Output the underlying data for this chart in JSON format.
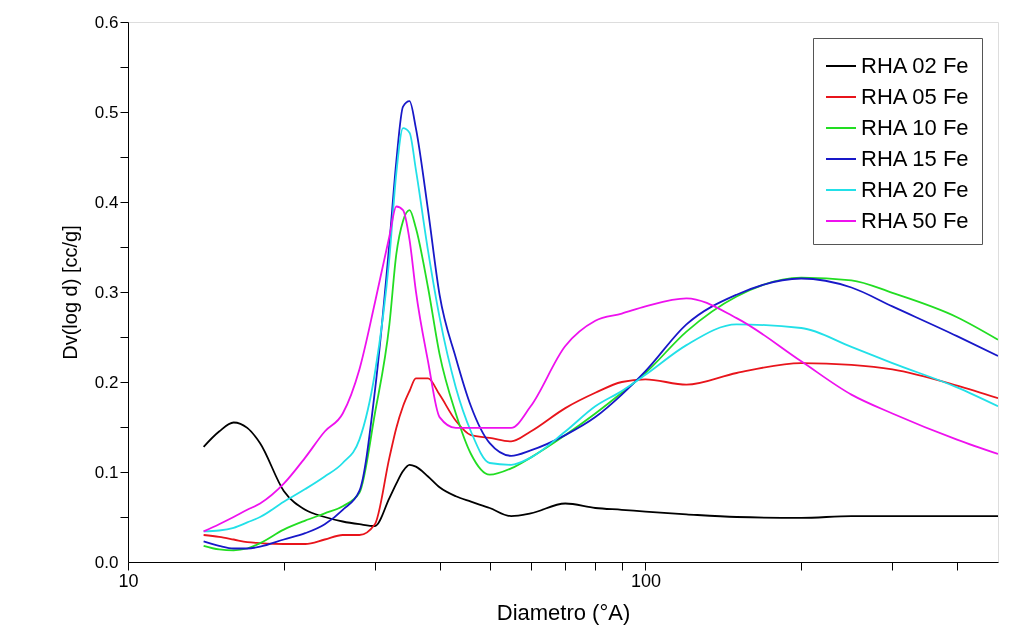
{
  "chart_data": {
    "type": "line",
    "xlabel": "Diametro (°A)",
    "ylabel": "Dv(log d) [cc/g]",
    "log": "x",
    "xlim": [
      10,
      480
    ],
    "ylim": [
      0,
      0.6
    ],
    "xticks": [
      10,
      {
        "value": 20,
        "label": null
      },
      {
        "value": 30,
        "label": null
      },
      {
        "value": 40,
        "label": null
      },
      {
        "value": 50,
        "label": null
      },
      {
        "value": 60,
        "label": null
      },
      {
        "value": 70,
        "label": null
      },
      {
        "value": 80,
        "label": null
      },
      {
        "value": 90,
        "label": null
      },
      100,
      {
        "value": 200,
        "label": null
      },
      {
        "value": 300,
        "label": null
      },
      {
        "value": 400,
        "label": null
      }
    ],
    "yticks": [
      {
        "value": 0,
        "label": "0.0"
      },
      {
        "value": 0.05,
        "label": null
      },
      0.1,
      {
        "value": 0.15,
        "label": null
      },
      0.2,
      {
        "value": 0.25,
        "label": null
      },
      0.3,
      {
        "value": 0.35,
        "label": null
      },
      0.4,
      {
        "value": 0.45,
        "label": null
      },
      0.5,
      {
        "value": 0.55,
        "label": null
      },
      0.6
    ],
    "grid": false,
    "legend": "top right",
    "marker": "none",
    "line_style": "solid",
    "x": [
      14,
      15,
      16,
      17,
      18,
      20,
      22,
      24,
      26,
      28,
      30,
      32,
      33,
      34,
      35,
      36,
      38,
      40,
      43,
      46,
      50,
      55,
      60,
      70,
      80,
      90,
      100,
      120,
      150,
      200,
      250,
      300,
      400,
      480
    ],
    "series": [
      {
        "name": "RHA 02 Fe",
        "color": "#000000",
        "values": [
          0.128,
          0.145,
          0.155,
          0.149,
          0.132,
          0.079,
          0.058,
          0.05,
          0.045,
          0.042,
          0.04,
          0.071,
          0.087,
          0.101,
          0.108,
          0.106,
          0.095,
          0.083,
          0.073,
          0.067,
          0.06,
          0.051,
          0.054,
          0.065,
          0.06,
          0.058,
          0.056,
          0.053,
          0.05,
          0.049,
          0.051,
          0.051,
          0.051,
          0.051
        ]
      },
      {
        "name": "RHA 05 Fe",
        "color": "#e8141b",
        "values": [
          0.03,
          0.028,
          0.025,
          0.022,
          0.021,
          0.02,
          0.02,
          0.025,
          0.03,
          0.03,
          0.042,
          0.116,
          0.149,
          0.173,
          0.19,
          0.204,
          0.204,
          0.186,
          0.157,
          0.141,
          0.138,
          0.134,
          0.145,
          0.171,
          0.188,
          0.2,
          0.203,
          0.197,
          0.21,
          0.221,
          0.219,
          0.214,
          0.196,
          0.182
        ]
      },
      {
        "name": "RHA 10 Fe",
        "color": "#22dd22",
        "values": [
          0.018,
          0.014,
          0.013,
          0.015,
          0.021,
          0.036,
          0.046,
          0.054,
          0.062,
          0.077,
          0.165,
          0.264,
          0.342,
          0.379,
          0.391,
          0.371,
          0.305,
          0.231,
          0.165,
          0.12,
          0.097,
          0.104,
          0.116,
          0.141,
          0.165,
          0.188,
          0.21,
          0.256,
          0.295,
          0.316,
          0.313,
          0.299,
          0.272,
          0.247
        ]
      },
      {
        "name": "RHA 15 Fe",
        "color": "#1818c8",
        "values": [
          0.023,
          0.018,
          0.015,
          0.015,
          0.017,
          0.025,
          0.032,
          0.042,
          0.058,
          0.079,
          0.19,
          0.354,
          0.445,
          0.506,
          0.512,
          0.482,
          0.391,
          0.297,
          0.227,
          0.173,
          0.132,
          0.118,
          0.124,
          0.141,
          0.161,
          0.186,
          0.212,
          0.264,
          0.297,
          0.315,
          0.305,
          0.284,
          0.251,
          0.229
        ]
      },
      {
        "name": "RHA 20 Fe",
        "color": "#22e0e8",
        "values": [
          0.034,
          0.035,
          0.038,
          0.044,
          0.05,
          0.067,
          0.081,
          0.095,
          0.11,
          0.136,
          0.21,
          0.338,
          0.432,
          0.482,
          0.477,
          0.436,
          0.346,
          0.272,
          0.194,
          0.145,
          0.11,
          0.108,
          0.116,
          0.145,
          0.173,
          0.19,
          0.208,
          0.241,
          0.264,
          0.26,
          0.239,
          0.221,
          0.194,
          0.173
        ]
      },
      {
        "name": "RHA 50 Fe",
        "color": "#ee11ee",
        "values": [
          0.034,
          0.042,
          0.05,
          0.058,
          0.065,
          0.087,
          0.116,
          0.145,
          0.165,
          0.214,
          0.288,
          0.362,
          0.395,
          0.391,
          0.358,
          0.301,
          0.223,
          0.161,
          0.149,
          0.149,
          0.149,
          0.149,
          0.173,
          0.24,
          0.268,
          0.276,
          0.284,
          0.293,
          0.271,
          0.223,
          0.186,
          0.165,
          0.136,
          0.12
        ]
      }
    ]
  }
}
